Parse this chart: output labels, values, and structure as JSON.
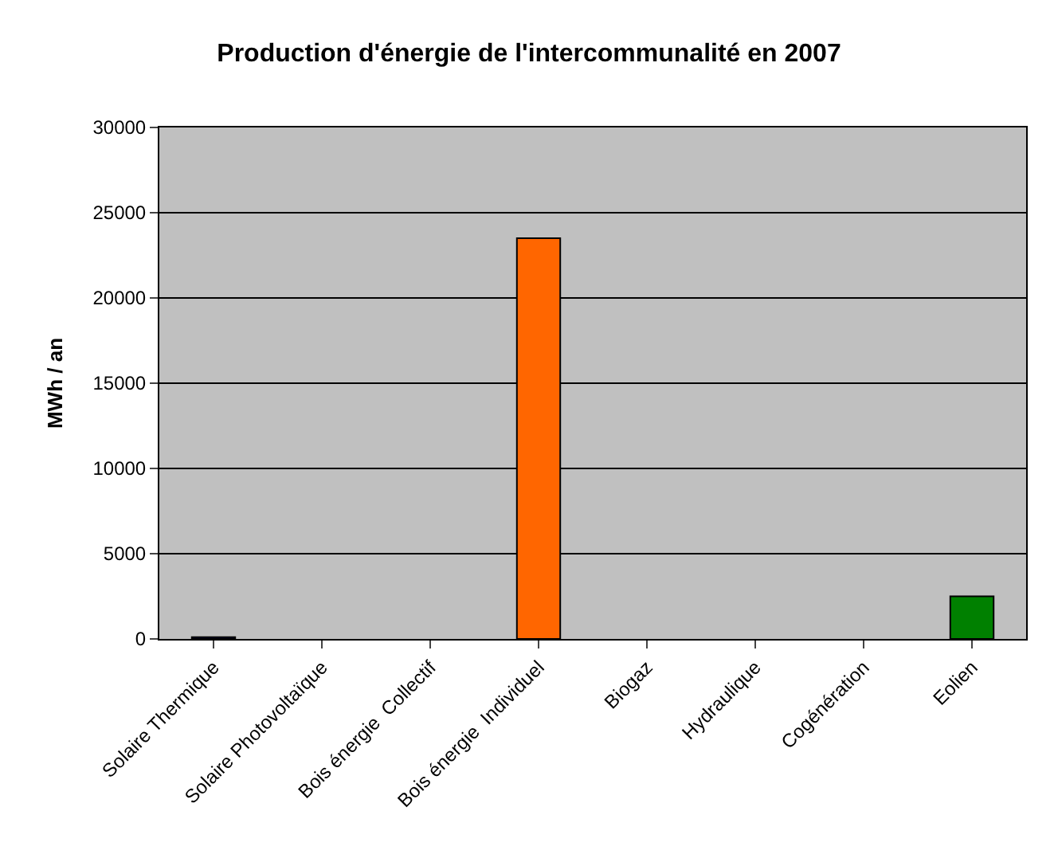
{
  "chart_data": {
    "type": "bar",
    "title": "Production d'énergie de l'intercommunalité en 2007",
    "ylabel": "MWh / an",
    "categories": [
      "Solaire Thermique",
      "Solaire Photovoltaïque",
      "Bois énergie  Collectif",
      "Bois énergie  Individuel",
      "Biogaz",
      "Hydraulique",
      "Cogénération",
      "Eolien"
    ],
    "values": [
      100,
      null,
      null,
      23500,
      null,
      null,
      null,
      2500
    ],
    "colors": [
      "#000080",
      "#000080",
      "#000080",
      "#ff6600",
      "#000080",
      "#000080",
      "#000080",
      "#008000"
    ],
    "ylim": [
      0,
      30000
    ],
    "yticks": [
      0,
      5000,
      10000,
      15000,
      20000,
      25000,
      30000
    ],
    "grid": "y"
  }
}
